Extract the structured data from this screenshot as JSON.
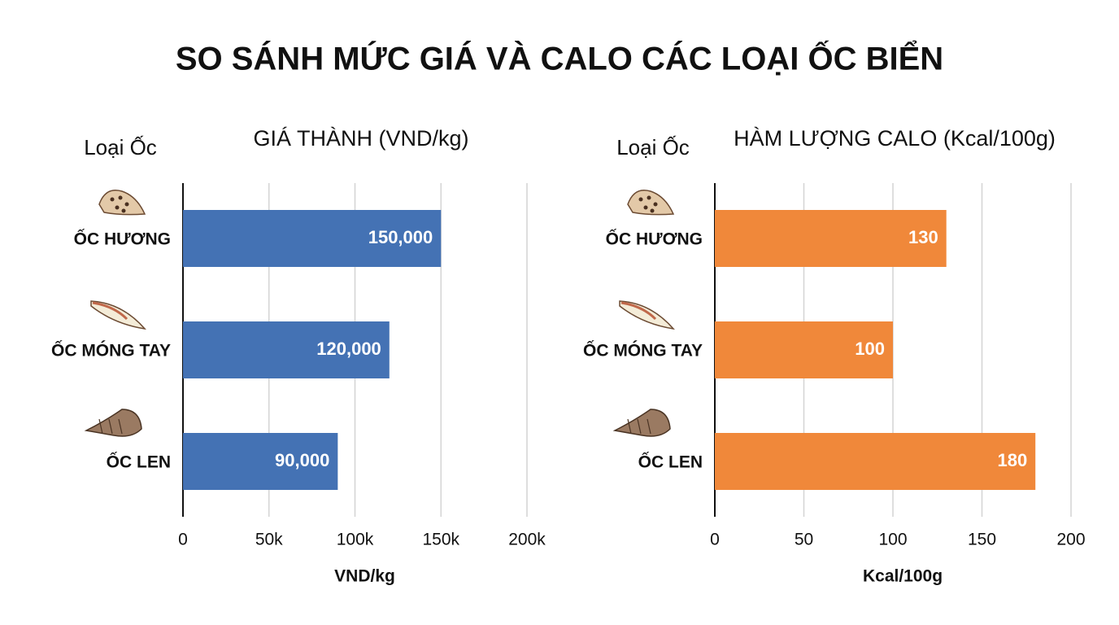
{
  "title": "SO SÁNH MỨC GIÁ VÀ CALO CÁC LOẠI ỐC BIỂN",
  "chart_data": [
    {
      "type": "bar",
      "orientation": "horizontal",
      "title": "GIÁ THÀNH (VND/kg)",
      "category_label": "Loại Ốc",
      "categories": [
        "ỐC HƯƠNG",
        "ỐC MÓNG TAY",
        "ỐC LEN"
      ],
      "values": [
        150000,
        120000,
        90000
      ],
      "value_labels": [
        "150,000",
        "120,000",
        "90,000"
      ],
      "color": "#4472b4",
      "xlabel": "VND/kg",
      "xlim": [
        0,
        200000
      ],
      "xticks": [
        0,
        {
          "value": 50000,
          "label": "50k"
        },
        {
          "value": 100000,
          "label": "100k"
        },
        {
          "value": 150000,
          "label": "150k"
        },
        {
          "value": 200000,
          "label": "200k"
        }
      ],
      "grid": true
    },
    {
      "type": "bar",
      "orientation": "horizontal",
      "title": "HÀM LƯỢNG CALO (Kcal/100g)",
      "category_label": "Loại Ốc",
      "categories": [
        "ỐC HƯƠNG",
        "ỐC MÓNG TAY",
        "ỐC LEN"
      ],
      "values": [
        130,
        100,
        180
      ],
      "color": "#f0883a",
      "xlabel": "Kcal/100g",
      "xlim": [
        0,
        200
      ],
      "xticks": [
        0,
        50,
        100,
        150,
        200
      ],
      "grid": true
    }
  ]
}
